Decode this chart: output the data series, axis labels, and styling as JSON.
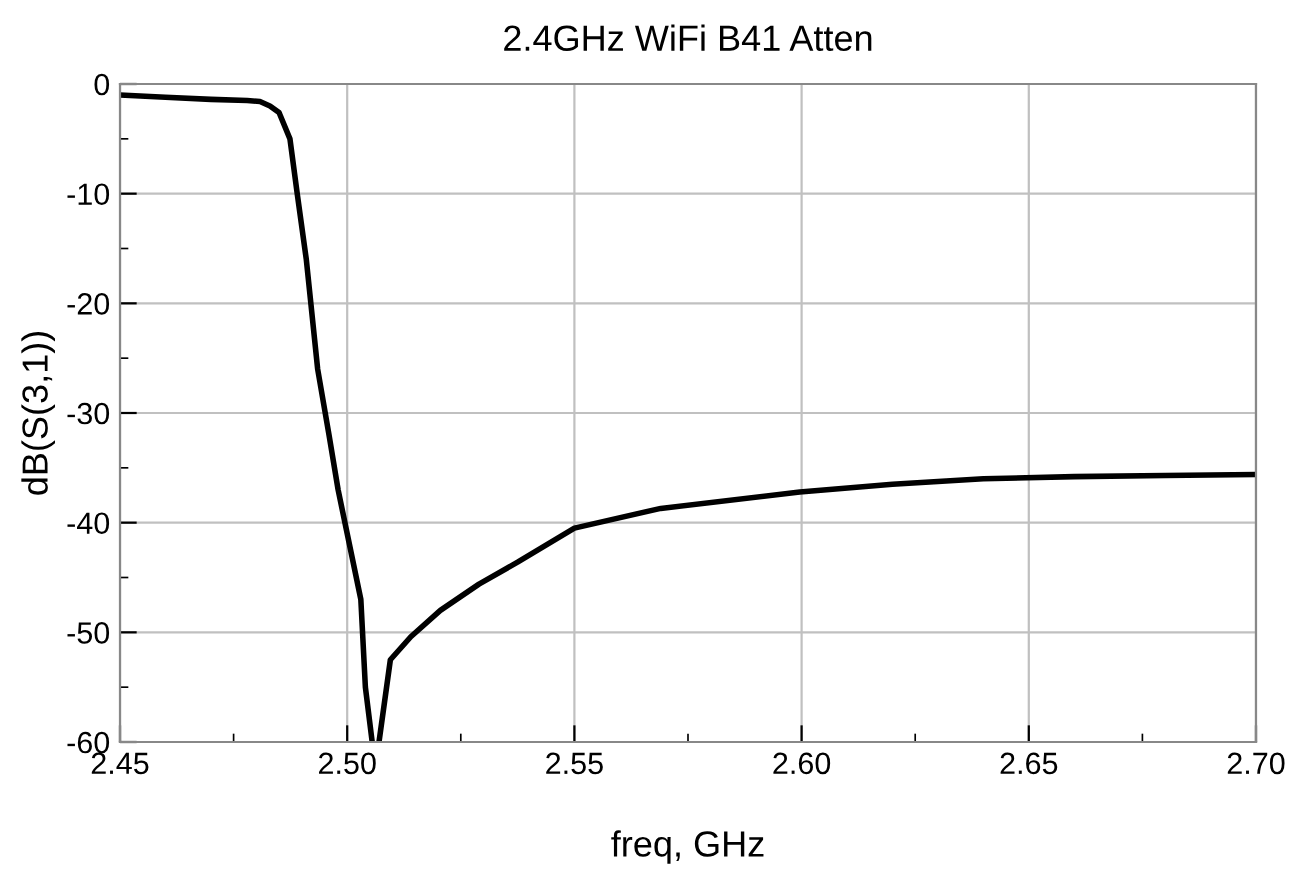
{
  "chart_data": {
    "type": "line",
    "title": "2.4GHz WiFi B41 Atten",
    "xlabel": "freq, GHz",
    "ylabel": "dB(S(3,1))",
    "xlim": [
      2.45,
      2.7
    ],
    "xticks": [
      {
        "value": 2.45,
        "label": "2.45"
      },
      {
        "value": 2.5,
        "label": "2.50"
      },
      {
        "value": 2.55,
        "label": "2.55"
      },
      {
        "value": 2.6,
        "label": "2.60"
      },
      {
        "value": 2.65,
        "label": "2.65"
      },
      {
        "value": 2.7,
        "label": "2.70"
      }
    ],
    "ylim": [
      -60,
      0
    ],
    "yticks": [
      -60,
      -50,
      -40,
      -30,
      -20,
      -10,
      0
    ],
    "grid": true,
    "legend": false,
    "marker": "none",
    "line_style": "solid",
    "series": [
      {
        "color": "#000000",
        "x": [
          2.45,
          2.46,
          2.47,
          2.478,
          2.4808,
          2.483,
          2.485,
          2.4874,
          2.489,
          2.491,
          2.4935,
          2.496,
          2.498,
          2.5,
          2.503,
          2.504,
          2.5055,
          2.506,
          2.507,
          2.5095,
          2.514,
          2.5205,
          2.529,
          2.5375,
          2.55,
          2.569,
          2.5996,
          2.62,
          2.64,
          2.66,
          2.68,
          2.7
        ],
        "values": [
          -1.0,
          -1.2,
          -1.4,
          -1.5,
          -1.6,
          -2.0,
          -2.6,
          -5,
          -10,
          -16,
          -26,
          -32,
          -37,
          -41,
          -47,
          -55,
          -60,
          null,
          -60,
          -52.5,
          -50.4,
          -48,
          -45.6,
          -43.6,
          -40.5,
          -38.7,
          -37.2,
          -36.5,
          -36.0,
          -35.8,
          -35.7,
          -35.6
        ]
      }
    ]
  }
}
